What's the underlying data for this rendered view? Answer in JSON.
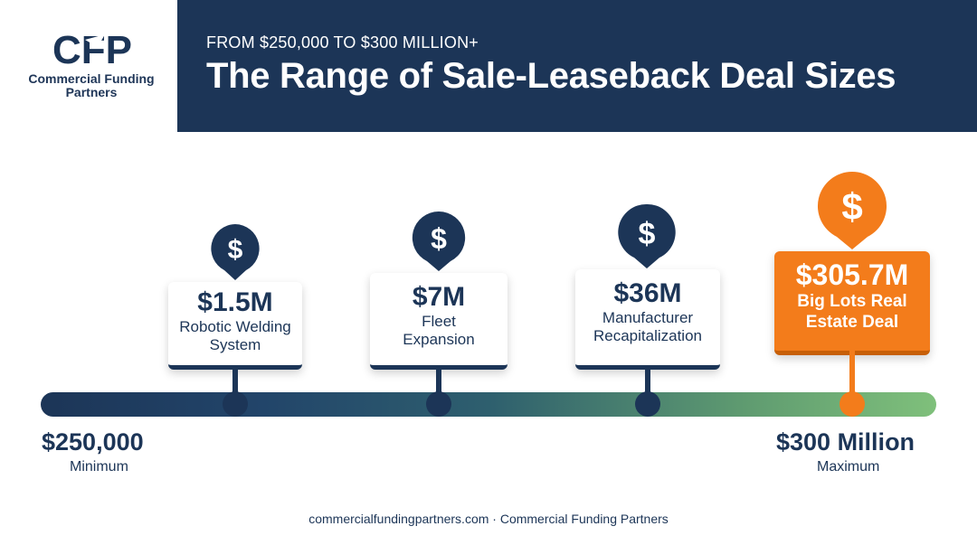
{
  "brand": {
    "logo_mark": "CFP",
    "name": "Commercial Funding Partners"
  },
  "header": {
    "eyebrow": "FROM $250,000 TO $300 MILLION+",
    "title": "The Range of Sale-Leaseback Deal Sizes"
  },
  "deals": [
    {
      "icon": "dollar-pin-icon",
      "value": "$1.5M",
      "label": "Robotic Welding System"
    },
    {
      "icon": "dollar-pin-icon",
      "value": "$7M",
      "label": "Fleet Expansion"
    },
    {
      "icon": "dollar-pin-icon",
      "value": "$36M",
      "label": "Manufacturer Recapitalization"
    },
    {
      "icon": "dollar-pin-icon",
      "value": "$305.7M",
      "label": "Big Lots Real Estate Deal"
    }
  ],
  "scale": {
    "min_value": "$250,000",
    "min_label": "Minimum",
    "max_value": "$300 Million",
    "max_label": "Maximum"
  },
  "footer": "commercialfundingpartners.com · Commercial Funding Partners",
  "colors": {
    "navy": "#1c3557",
    "orange": "#f37c1b",
    "green": "#7fc07b"
  }
}
